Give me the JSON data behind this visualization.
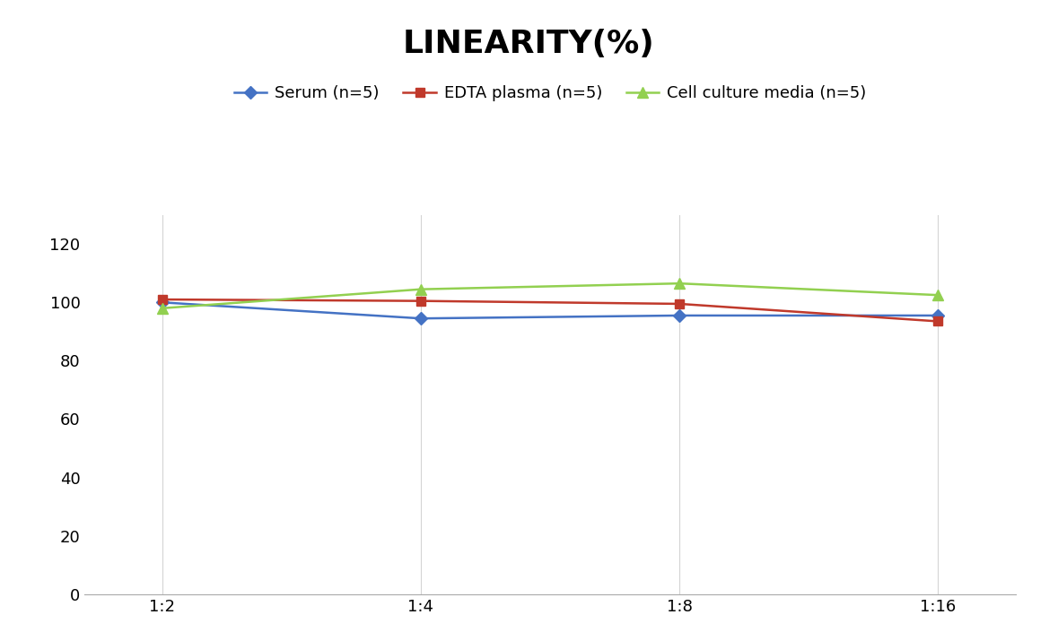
{
  "title": "LINEARITY(%)",
  "x_labels": [
    "1:2",
    "1:4",
    "1:8",
    "1:16"
  ],
  "x_values": [
    0,
    1,
    2,
    3
  ],
  "series": [
    {
      "name": "Serum (n=5)",
      "values": [
        100,
        94.5,
        95.5,
        95.5
      ],
      "color": "#4472C4",
      "marker": "D",
      "markersize": 7
    },
    {
      "name": "EDTA plasma (n=5)",
      "values": [
        101,
        100.5,
        99.5,
        93.5
      ],
      "color": "#C0392B",
      "marker": "s",
      "markersize": 7
    },
    {
      "name": "Cell culture media (n=5)",
      "values": [
        98,
        104.5,
        106.5,
        102.5
      ],
      "color": "#92D050",
      "marker": "^",
      "markersize": 8
    }
  ],
  "ylim": [
    0,
    130
  ],
  "yticks": [
    0,
    20,
    40,
    60,
    80,
    100,
    120
  ],
  "title_fontsize": 26,
  "legend_fontsize": 13,
  "tick_fontsize": 13,
  "background_color": "#ffffff",
  "grid_color": "#d4d4d4"
}
